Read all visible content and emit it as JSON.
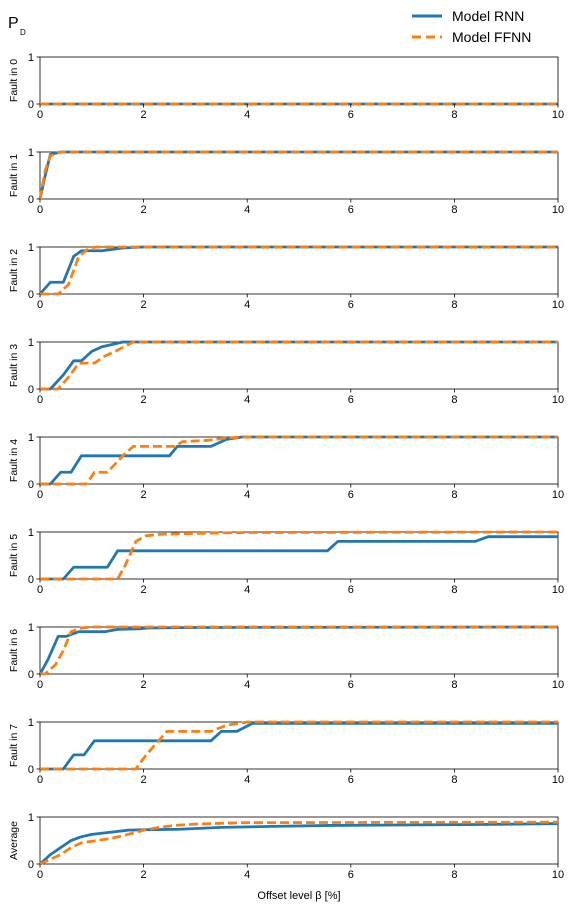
{
  "figure": {
    "corner_label_main": "P",
    "corner_label_sub": "D",
    "xlabel": "Offset level β [%]"
  },
  "legend": [
    {
      "label": "Model RNN",
      "color": "#1f77b4",
      "dash": false
    },
    {
      "label": "Model FFNN",
      "color": "#ff7f0e",
      "dash": true
    }
  ],
  "chart_data": {
    "type": "line",
    "xlim": [
      0,
      10
    ],
    "ylim": [
      0,
      1
    ],
    "x_ticks": [
      0,
      2,
      4,
      6,
      8,
      10
    ],
    "y_ticks": [
      0,
      1
    ],
    "grid": false,
    "legend_position": "top-right",
    "panels": [
      {
        "ylabel": "Fault in 0",
        "series": [
          {
            "name": "Model RNN",
            "points": [
              [
                0,
                0
              ],
              [
                10,
                0
              ]
            ]
          },
          {
            "name": "Model FFNN",
            "points": [
              [
                0,
                0
              ],
              [
                10,
                0
              ]
            ]
          }
        ]
      },
      {
        "ylabel": "Fault in 1",
        "series": [
          {
            "name": "Model RNN",
            "points": [
              [
                0,
                0
              ],
              [
                0.1,
                0.5
              ],
              [
                0.2,
                0.95
              ],
              [
                0.4,
                1.0
              ],
              [
                10,
                1.0
              ]
            ]
          },
          {
            "name": "Model FFNN",
            "points": [
              [
                0,
                0
              ],
              [
                0.1,
                0.6
              ],
              [
                0.2,
                0.92
              ],
              [
                0.4,
                1.0
              ],
              [
                10,
                1.0
              ]
            ]
          }
        ]
      },
      {
        "ylabel": "Fault in 2",
        "series": [
          {
            "name": "Model RNN",
            "points": [
              [
                0,
                0
              ],
              [
                0.2,
                0.25
              ],
              [
                0.45,
                0.25
              ],
              [
                0.65,
                0.8
              ],
              [
                0.8,
                0.92
              ],
              [
                1.2,
                0.92
              ],
              [
                1.4,
                0.95
              ],
              [
                1.6,
                0.98
              ],
              [
                2.0,
                1.0
              ],
              [
                10,
                1.0
              ]
            ]
          },
          {
            "name": "Model FFNN",
            "points": [
              [
                0,
                0
              ],
              [
                0.35,
                0
              ],
              [
                0.55,
                0.2
              ],
              [
                0.75,
                0.8
              ],
              [
                0.95,
                0.98
              ],
              [
                1.1,
                1.0
              ],
              [
                10,
                1.0
              ]
            ]
          }
        ]
      },
      {
        "ylabel": "Fault in 3",
        "series": [
          {
            "name": "Model RNN",
            "points": [
              [
                0,
                0
              ],
              [
                0.2,
                0
              ],
              [
                0.45,
                0.3
              ],
              [
                0.65,
                0.6
              ],
              [
                0.8,
                0.6
              ],
              [
                1.0,
                0.8
              ],
              [
                1.2,
                0.9
              ],
              [
                1.4,
                0.95
              ],
              [
                1.6,
                1.0
              ],
              [
                10,
                1.0
              ]
            ]
          },
          {
            "name": "Model FFNN",
            "points": [
              [
                0,
                0
              ],
              [
                0.35,
                0
              ],
              [
                0.55,
                0.25
              ],
              [
                0.75,
                0.55
              ],
              [
                1.05,
                0.55
              ],
              [
                1.25,
                0.7
              ],
              [
                1.45,
                0.8
              ],
              [
                1.8,
                1.0
              ],
              [
                10,
                1.0
              ]
            ]
          }
        ]
      },
      {
        "ylabel": "Fault in 4",
        "series": [
          {
            "name": "Model RNN",
            "points": [
              [
                0,
                0
              ],
              [
                0.2,
                0
              ],
              [
                0.4,
                0.25
              ],
              [
                0.6,
                0.25
              ],
              [
                0.8,
                0.6
              ],
              [
                2.5,
                0.6
              ],
              [
                2.65,
                0.8
              ],
              [
                3.3,
                0.8
              ],
              [
                3.6,
                0.95
              ],
              [
                3.9,
                1.0
              ],
              [
                10,
                1.0
              ]
            ]
          },
          {
            "name": "Model FFNN",
            "points": [
              [
                0,
                0
              ],
              [
                0.9,
                0
              ],
              [
                1.05,
                0.25
              ],
              [
                1.3,
                0.25
              ],
              [
                1.6,
                0.6
              ],
              [
                1.8,
                0.8
              ],
              [
                2.6,
                0.8
              ],
              [
                2.75,
                0.9
              ],
              [
                3.25,
                0.93
              ],
              [
                3.6,
                0.98
              ],
              [
                4.0,
                1.0
              ],
              [
                10,
                1.0
              ]
            ]
          }
        ]
      },
      {
        "ylabel": "Fault in 5",
        "series": [
          {
            "name": "Model RNN",
            "points": [
              [
                0,
                0
              ],
              [
                0.45,
                0
              ],
              [
                0.65,
                0.25
              ],
              [
                1.3,
                0.25
              ],
              [
                1.5,
                0.6
              ],
              [
                5.55,
                0.6
              ],
              [
                5.75,
                0.8
              ],
              [
                8.4,
                0.8
              ],
              [
                8.65,
                0.9
              ],
              [
                10,
                0.9
              ]
            ]
          },
          {
            "name": "Model FFNN",
            "points": [
              [
                0,
                0
              ],
              [
                1.5,
                0
              ],
              [
                1.65,
                0.3
              ],
              [
                1.85,
                0.8
              ],
              [
                2.05,
                0.92
              ],
              [
                2.3,
                0.95
              ],
              [
                3.0,
                0.97
              ],
              [
                4.0,
                0.99
              ],
              [
                10,
                1.0
              ]
            ]
          }
        ]
      },
      {
        "ylabel": "Fault in 6",
        "series": [
          {
            "name": "Model RNN",
            "points": [
              [
                0,
                0
              ],
              [
                0.15,
                0.3
              ],
              [
                0.35,
                0.8
              ],
              [
                0.5,
                0.8
              ],
              [
                0.75,
                0.9
              ],
              [
                1.25,
                0.9
              ],
              [
                1.5,
                0.95
              ],
              [
                1.9,
                0.96
              ],
              [
                2.1,
                0.98
              ],
              [
                3.0,
                0.99
              ],
              [
                10,
                1.0
              ]
            ]
          },
          {
            "name": "Model FFNN",
            "points": [
              [
                0,
                0
              ],
              [
                0.1,
                0
              ],
              [
                0.3,
                0.2
              ],
              [
                0.45,
                0.5
              ],
              [
                0.6,
                0.9
              ],
              [
                0.8,
                0.98
              ],
              [
                1.0,
                1.0
              ],
              [
                10,
                1.0
              ]
            ]
          }
        ]
      },
      {
        "ylabel": "Fault in 7",
        "series": [
          {
            "name": "Model RNN",
            "points": [
              [
                0,
                0
              ],
              [
                0.45,
                0
              ],
              [
                0.65,
                0.3
              ],
              [
                0.85,
                0.3
              ],
              [
                1.05,
                0.6
              ],
              [
                3.3,
                0.6
              ],
              [
                3.5,
                0.8
              ],
              [
                3.8,
                0.8
              ],
              [
                4.1,
                0.97
              ],
              [
                10,
                0.97
              ]
            ]
          },
          {
            "name": "Model FFNN",
            "points": [
              [
                0,
                0
              ],
              [
                1.85,
                0
              ],
              [
                2.05,
                0.3
              ],
              [
                2.25,
                0.55
              ],
              [
                2.45,
                0.8
              ],
              [
                3.3,
                0.8
              ],
              [
                3.6,
                0.93
              ],
              [
                4.0,
                1.0
              ],
              [
                10,
                1.0
              ]
            ]
          }
        ]
      },
      {
        "ylabel": "Average",
        "series": [
          {
            "name": "Model RNN",
            "points": [
              [
                0,
                0
              ],
              [
                0.2,
                0.2
              ],
              [
                0.4,
                0.35
              ],
              [
                0.6,
                0.5
              ],
              [
                0.8,
                0.58
              ],
              [
                1.0,
                0.63
              ],
              [
                1.4,
                0.68
              ],
              [
                1.7,
                0.72
              ],
              [
                2.1,
                0.73
              ],
              [
                2.7,
                0.74
              ],
              [
                3.5,
                0.78
              ],
              [
                4.5,
                0.8
              ],
              [
                5.6,
                0.82
              ],
              [
                8.5,
                0.84
              ],
              [
                10,
                0.86
              ]
            ]
          },
          {
            "name": "Model FFNN",
            "points": [
              [
                0,
                0
              ],
              [
                0.2,
                0.1
              ],
              [
                0.4,
                0.2
              ],
              [
                0.6,
                0.35
              ],
              [
                0.8,
                0.45
              ],
              [
                1.1,
                0.5
              ],
              [
                1.4,
                0.55
              ],
              [
                1.7,
                0.63
              ],
              [
                2.0,
                0.72
              ],
              [
                2.3,
                0.78
              ],
              [
                2.6,
                0.82
              ],
              [
                3.0,
                0.85
              ],
              [
                3.6,
                0.87
              ],
              [
                4.0,
                0.88
              ],
              [
                10,
                0.89
              ]
            ]
          }
        ]
      }
    ]
  }
}
